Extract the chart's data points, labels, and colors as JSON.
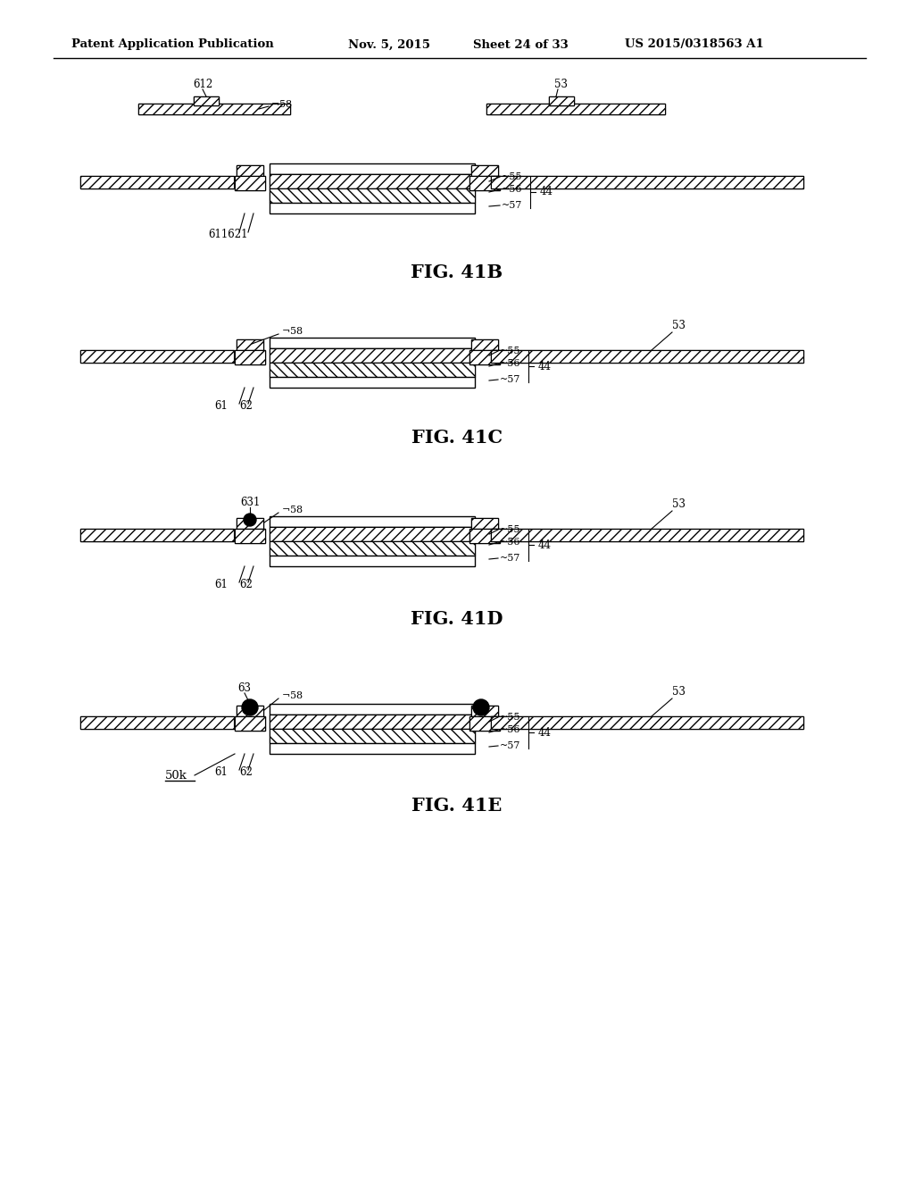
{
  "title_left": "Patent Application Publication",
  "title_mid1": "Nov. 5, 2015",
  "title_mid2": "Sheet 24 of 33",
  "title_right": "US 2015/0318563 A1",
  "background": "#ffffff",
  "fig_captions": [
    "FIG. 41B",
    "FIG. 41C",
    "FIG. 41D",
    "FIG. 41E"
  ]
}
